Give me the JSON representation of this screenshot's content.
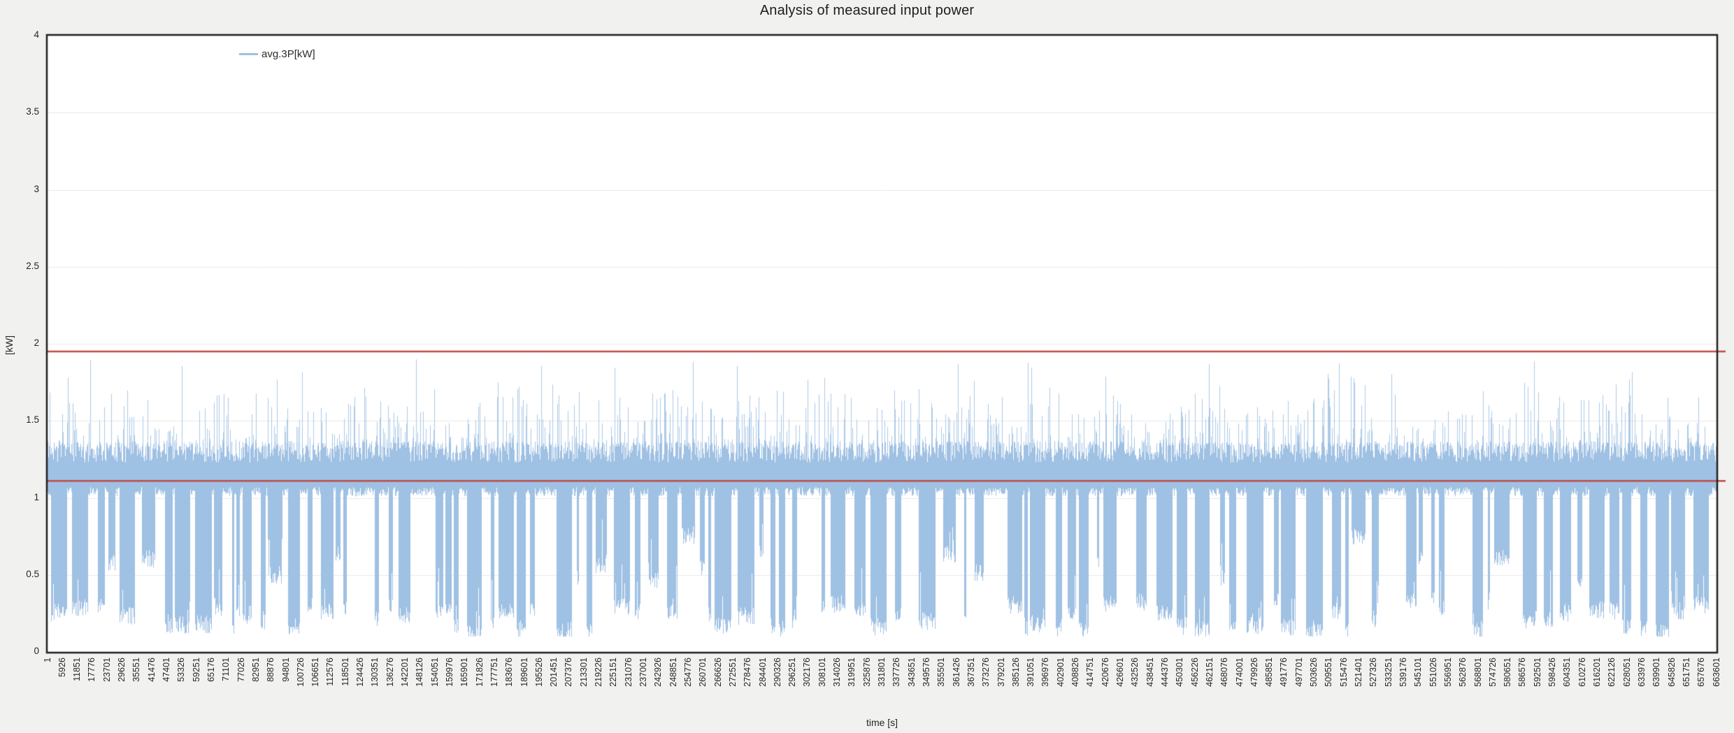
{
  "page": {
    "background": "#f1f1f0"
  },
  "chart_data": {
    "type": "line",
    "title": "Analysis of measured input power",
    "xlabel": "time [s]",
    "ylabel": "[kW]",
    "grid": "horizontal",
    "legend": {
      "position": "inside-top-left",
      "entries": [
        {
          "label": "avg.3P[kW]",
          "color": "#9fc1e3"
        }
      ]
    },
    "ylim": [
      0,
      4
    ],
    "y_ticks": [
      0,
      0.5,
      1,
      1.5,
      2,
      2.5,
      3,
      3.5,
      4
    ],
    "xlim": [
      1,
      663601
    ],
    "x_tick_step": 5925,
    "x_ticks": [
      1,
      5926,
      11851,
      17776,
      23701,
      29626,
      35551,
      41476,
      47401,
      53326,
      59251,
      65176,
      71101,
      77026,
      82951,
      88876,
      94801,
      100726,
      106651,
      112576,
      118501,
      124426,
      130351,
      136276,
      142201,
      148126,
      154051,
      159976,
      165901,
      171826,
      177751,
      183676,
      189601,
      195526,
      201451,
      207376,
      213301,
      219226,
      225151,
      231076,
      237001,
      242926,
      248851,
      254776,
      260701,
      266626,
      272551,
      278476,
      284401,
      290326,
      296251,
      302176,
      308101,
      314026,
      319951,
      325876,
      331801,
      337726,
      343651,
      349576,
      355501,
      361426,
      367351,
      373276,
      379201,
      385126,
      391051,
      396976,
      402901,
      408826,
      414751,
      420676,
      426601,
      432526,
      438451,
      444376,
      450301,
      456226,
      462151,
      468076,
      474001,
      479926,
      485851,
      491776,
      497701,
      503626,
      509551,
      515476,
      521401,
      527326,
      533251,
      539176,
      545101,
      551026,
      556951,
      562876,
      568801,
      574726,
      580651,
      586576,
      592501,
      598426,
      604351,
      610276,
      616201,
      622126,
      628051,
      633976,
      639901,
      645826,
      651751,
      657676,
      663601
    ],
    "reference_lines": [
      {
        "y": 1.95,
        "color": "#be4b48",
        "name": "upper-threshold"
      },
      {
        "y": 1.11,
        "color": "#be4b48",
        "name": "lower-threshold"
      }
    ],
    "series": [
      {
        "name": "avg.3P[kW]",
        "color": "#9fc1e3",
        "approx_points": 663601,
        "description": "Very dense noisy power signal rendered as per-pixel min/max columns: solid band ~1.0-1.6 kW, spiky upper envelope mostly 1.3-1.7 kW with rare peaks to ~1.9 kW, and frequent deep dropouts down to ~0.1-0.9 kW forming vertical stripes separated by white gaps.",
        "profile": {
          "seed": 7,
          "column_top_base": 1.23,
          "top_jitter": 0.14,
          "spike_chance": 0.38,
          "spike_extra": 0.34,
          "tall_spike_chance": 0.005,
          "tall_spike_min": 1.62,
          "tall_spike_extra": 0.28,
          "rare_peak_chance": 0.0012,
          "rare_peak_min": 1.82,
          "max": 1.93,
          "shallow_min_base": 1.01,
          "shallow_min_jitter": 0.06,
          "drop_cluster_width": [
            3,
            25
          ],
          "gap_width": [
            2,
            15
          ],
          "long_gap_chance": 0.09,
          "long_gap_width": [
            18,
            48
          ],
          "deep_depth": [
            0.13,
            0.33
          ],
          "mid_depth_chance": 0.25,
          "mid_depth": [
            0.45,
            0.85
          ],
          "min_depth": 0.1
        }
      }
    ],
    "colors": {
      "background": "#f1f1f0",
      "plot_background": "#ffffff",
      "frame": "#1f1f1f",
      "grid": "#e9e9e9",
      "text": "#262626",
      "series_blue": "#9fc1e3",
      "threshold_red": "#be4b48"
    }
  }
}
